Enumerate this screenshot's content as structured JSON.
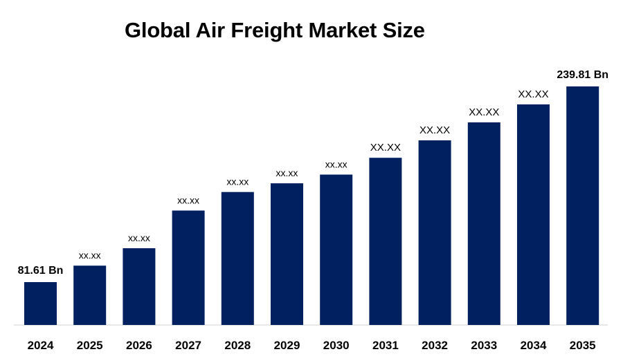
{
  "chart_data": {
    "type": "bar",
    "title": "Global Air Freight Market Size",
    "xlabel": "",
    "ylabel": "",
    "categories": [
      "2024",
      "2025",
      "2026",
      "2027",
      "2028",
      "2029",
      "2030",
      "2031",
      "2032",
      "2033",
      "2034",
      "2035"
    ],
    "values": [
      81.61,
      110,
      140,
      205,
      237,
      252,
      267,
      296,
      326,
      357,
      388,
      239.81
    ],
    "value_labels": [
      "81.61 Bn",
      "xx.xx",
      "xx.xx",
      "xx.xx",
      "xx.xx",
      "xx.xx",
      "xx.xx",
      "XX.XX",
      "XX.XX",
      "XX.XX",
      "XX.XX",
      "239.81 Bn"
    ],
    "bar_color": "#002060",
    "grid": false,
    "legend": "none"
  }
}
